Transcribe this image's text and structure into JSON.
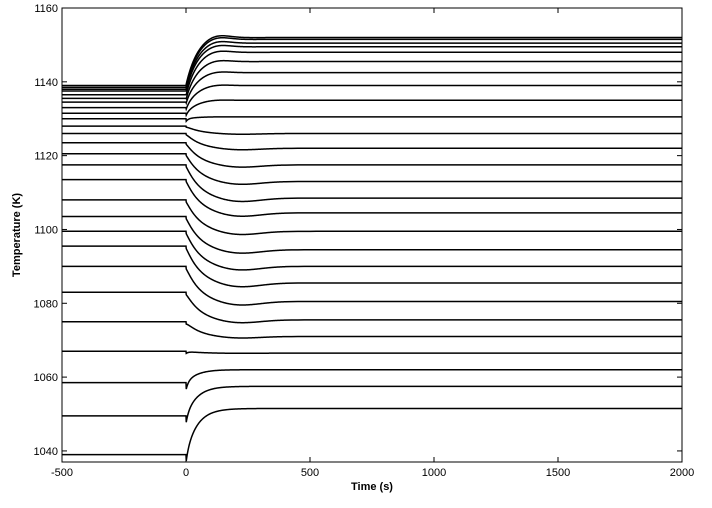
{
  "chart_data": {
    "type": "line",
    "xlabel": "Time (s)",
    "ylabel": "Temperature (K)",
    "xlim": [
      -500,
      2000
    ],
    "ylim": [
      1037,
      1160
    ],
    "xticks": [
      -500,
      0,
      500,
      1000,
      1500,
      2000
    ],
    "yticks": [
      1040,
      1060,
      1080,
      1100,
      1120,
      1140,
      1160
    ],
    "grid": false,
    "line_color": "#000000",
    "series": [
      {
        "initial": 1039.0,
        "final": 1051.5
      },
      {
        "initial": 1049.5,
        "final": 1057.5
      },
      {
        "initial": 1058.5,
        "final": 1062.0
      },
      {
        "initial": 1067.0,
        "final": 1066.5
      },
      {
        "initial": 1075.0,
        "final": 1071.0
      },
      {
        "initial": 1083.0,
        "final": 1075.5
      },
      {
        "initial": 1090.0,
        "final": 1080.5
      },
      {
        "initial": 1095.5,
        "final": 1085.5
      },
      {
        "initial": 1099.5,
        "final": 1090.0
      },
      {
        "initial": 1103.5,
        "final": 1094.5
      },
      {
        "initial": 1108.0,
        "final": 1099.5
      },
      {
        "initial": 1113.5,
        "final": 1104.5
      },
      {
        "initial": 1117.5,
        "final": 1108.5
      },
      {
        "initial": 1120.5,
        "final": 1113.0
      },
      {
        "initial": 1123.5,
        "final": 1117.5
      },
      {
        "initial": 1126.0,
        "final": 1122.0
      },
      {
        "initial": 1128.0,
        "final": 1126.0
      },
      {
        "initial": 1130.0,
        "final": 1130.5
      },
      {
        "initial": 1131.5,
        "final": 1135.0
      },
      {
        "initial": 1133.0,
        "final": 1139.0
      },
      {
        "initial": 1134.5,
        "final": 1142.5
      },
      {
        "initial": 1135.5,
        "final": 1145.5
      },
      {
        "initial": 1136.5,
        "final": 1148.0
      },
      {
        "initial": 1137.5,
        "final": 1149.5
      },
      {
        "initial": 1138.0,
        "final": 1150.5
      },
      {
        "initial": 1138.5,
        "final": 1151.5
      },
      {
        "initial": 1139.0,
        "final": 1152.0
      }
    ]
  }
}
